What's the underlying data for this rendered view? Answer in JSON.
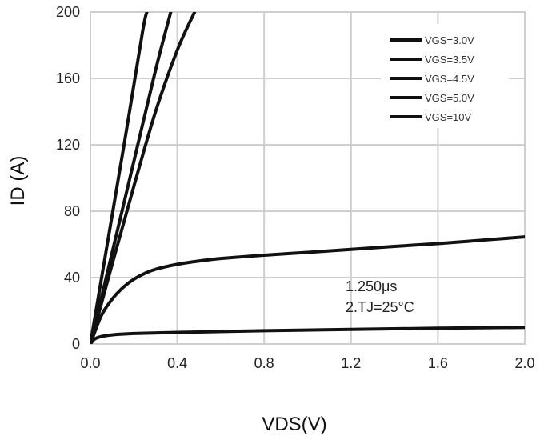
{
  "chart_data": {
    "type": "line",
    "xlabel": "VDS(V)",
    "ylabel": "ID (A)",
    "xlim": [
      0,
      2.0
    ],
    "ylim": [
      0,
      200
    ],
    "xticks": [
      "0.0",
      "0.4",
      "0.8",
      "1.2",
      "1.6",
      "2.0"
    ],
    "yticks": [
      "0",
      "40",
      "80",
      "120",
      "160",
      "200"
    ],
    "grid": true,
    "legend_position": "top-right",
    "annotations": [
      "1.250μs",
      "2.TJ=25°C"
    ],
    "series": [
      {
        "name": "VGS=3.0V",
        "x": [
          0,
          0.02,
          0.05,
          0.1,
          0.2,
          0.4,
          0.8,
          1.2,
          1.6,
          2.0
        ],
        "y": [
          0,
          3,
          4.5,
          5.5,
          6.3,
          7,
          8,
          8.8,
          9.5,
          10
        ]
      },
      {
        "name": "VGS=3.5V",
        "x": [
          0,
          0.05,
          0.1,
          0.15,
          0.2,
          0.25,
          0.3,
          0.4,
          0.5,
          0.6,
          0.8,
          1.0,
          1.2,
          1.4,
          1.6,
          1.8,
          2.0
        ],
        "y": [
          0,
          17,
          27,
          34,
          39,
          42.5,
          45,
          48,
          50,
          51.5,
          53.5,
          55.2,
          57,
          58.8,
          60.5,
          62.5,
          64.5
        ]
      },
      {
        "name": "VGS=4.5V",
        "x": [
          0,
          0.1,
          0.2,
          0.3,
          0.4,
          0.48
        ],
        "y": [
          0,
          48,
          95,
          140,
          177,
          200
        ]
      },
      {
        "name": "VGS=5.0V",
        "x": [
          0,
          0.1,
          0.2,
          0.3,
          0.37
        ],
        "y": [
          0,
          55,
          110,
          165,
          200
        ]
      },
      {
        "name": "VGS=10V",
        "x": [
          0,
          0.08,
          0.16,
          0.24,
          0.26
        ],
        "y": [
          0,
          62,
          124,
          188,
          200
        ]
      }
    ]
  }
}
